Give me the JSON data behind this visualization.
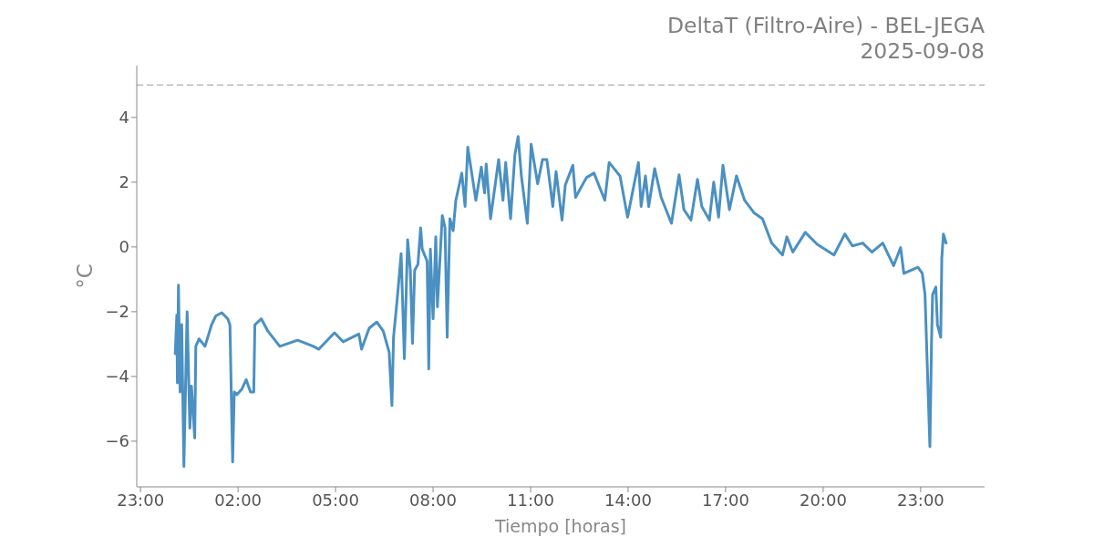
{
  "chart_data": {
    "type": "line",
    "title": "DeltaT (Filtro-Aire) - BEL-JEGA\n2025-09-08",
    "xlabel": "Tiempo [horas]",
    "ylabel": "°C",
    "color": "#4a90c2",
    "x": [
      "2025-09-08T00:04",
      "2025-09-08T00:07",
      "2025-09-08T00:08",
      "2025-09-08T00:10",
      "2025-09-08T00:13",
      "2025-09-08T00:16",
      "2025-09-08T00:20",
      "2025-09-08T00:26",
      "2025-09-08T00:31",
      "2025-09-08T00:34",
      "2025-09-08T00:40",
      "2025-09-08T00:42",
      "2025-09-08T00:48",
      "2025-09-08T00:59",
      "2025-09-08T01:11",
      "2025-09-08T01:19",
      "2025-09-08T01:30",
      "2025-09-08T01:41",
      "2025-09-08T01:45",
      "2025-09-08T01:50",
      "2025-09-08T01:53",
      "2025-09-08T01:58",
      "2025-09-08T02:07",
      "2025-09-08T02:15",
      "2025-09-08T02:23",
      "2025-09-08T02:29",
      "2025-09-08T02:31",
      "2025-09-08T02:43",
      "2025-09-08T02:55",
      "2025-09-08T03:17",
      "2025-09-08T03:50",
      "2025-09-08T04:19",
      "2025-09-08T04:29",
      "2025-09-08T04:58",
      "2025-09-08T05:14",
      "2025-09-08T05:43",
      "2025-09-08T05:48",
      "2025-09-08T06:02",
      "2025-09-08T06:16",
      "2025-09-08T06:28",
      "2025-09-08T06:39",
      "2025-09-08T06:44",
      "2025-09-08T06:47",
      "2025-09-08T06:53",
      "2025-09-08T06:56",
      "2025-09-08T07:01",
      "2025-09-08T07:07",
      "2025-09-08T07:13",
      "2025-09-08T07:18",
      "2025-09-08T07:22",
      "2025-09-08T07:26",
      "2025-09-08T07:32",
      "2025-09-08T07:37",
      "2025-09-08T07:40",
      "2025-09-08T07:49",
      "2025-09-08T07:52",
      "2025-09-08T07:55",
      "2025-09-08T08:00",
      "2025-09-08T08:05",
      "2025-09-08T08:08",
      "2025-09-08T08:17",
      "2025-09-08T08:22",
      "2025-09-08T08:26",
      "2025-09-08T08:31",
      "2025-09-08T08:37",
      "2025-09-08T08:42",
      "2025-09-08T08:53",
      "2025-09-08T08:59",
      "2025-09-08T09:04",
      "2025-09-08T09:19",
      "2025-09-08T09:29",
      "2025-09-08T09:35",
      "2025-09-08T09:38",
      "2025-09-08T09:46",
      "2025-09-08T10:01",
      "2025-09-08T10:09",
      "2025-09-08T10:14",
      "2025-09-08T10:23",
      "2025-09-08T10:31",
      "2025-09-08T10:37",
      "2025-09-08T10:43",
      "2025-09-08T10:54",
      "2025-09-08T11:01",
      "2025-09-08T11:13",
      "2025-09-08T11:22",
      "2025-09-08T11:30",
      "2025-09-08T11:41",
      "2025-09-08T11:47",
      "2025-09-08T11:58",
      "2025-09-08T12:04",
      "2025-09-08T12:18",
      "2025-09-08T12:23",
      "2025-09-08T12:43",
      "2025-09-08T12:57",
      "2025-09-08T13:17",
      "2025-09-08T13:25",
      "2025-09-08T13:45",
      "2025-09-08T13:59",
      "2025-09-08T14:19",
      "2025-09-08T14:24",
      "2025-09-08T14:32",
      "2025-09-08T14:38",
      "2025-09-08T14:49",
      "2025-09-08T15:01",
      "2025-09-08T15:20",
      "2025-09-08T15:34",
      "2025-09-08T15:43",
      "2025-09-08T15:56",
      "2025-09-08T16:08",
      "2025-09-08T16:16",
      "2025-09-08T16:30",
      "2025-09-08T16:38",
      "2025-09-08T16:47",
      "2025-09-08T16:55",
      "2025-09-08T17:07",
      "2025-09-08T17:20",
      "2025-09-08T17:35",
      "2025-09-08T17:52",
      "2025-09-08T18:08",
      "2025-09-08T18:25",
      "2025-09-08T18:45",
      "2025-09-08T18:53",
      "2025-09-08T19:04",
      "2025-09-08T19:27",
      "2025-09-08T19:49",
      "2025-09-08T20:20",
      "2025-09-08T20:40",
      "2025-09-08T20:54",
      "2025-09-08T21:13",
      "2025-09-08T21:30",
      "2025-09-08T21:50",
      "2025-09-08T22:10",
      "2025-09-08T22:23",
      "2025-09-08T22:29",
      "2025-09-08T22:55",
      "2025-09-08T23:03",
      "2025-09-08T23:08",
      "2025-09-08T23:17",
      "2025-09-08T23:20",
      "2025-09-08T23:22",
      "2025-09-08T23:28",
      "2025-09-08T23:31",
      "2025-09-08T23:37",
      "2025-09-08T23:39",
      "2025-09-08T23:42",
      "2025-09-08T23:47"
    ],
    "values": [
      -3.3,
      -2.1,
      -4.2,
      -1.18,
      -4.48,
      -2.4,
      -6.78,
      -2.0,
      -5.6,
      -4.3,
      -5.9,
      -3.07,
      -2.84,
      -3.07,
      -2.41,
      -2.13,
      -2.03,
      -2.22,
      -2.41,
      -6.64,
      -4.48,
      -4.56,
      -4.39,
      -4.1,
      -4.48,
      -4.48,
      -2.41,
      -2.22,
      -2.6,
      -3.07,
      -2.88,
      -3.07,
      -3.16,
      -2.65,
      -2.93,
      -2.69,
      -3.16,
      -2.51,
      -2.32,
      -2.6,
      -3.26,
      -4.9,
      -2.79,
      -1.75,
      -1.19,
      -0.21,
      -3.45,
      0.22,
      -0.72,
      -2.98,
      -0.72,
      -0.54,
      0.59,
      -0.07,
      -0.44,
      -3.77,
      -0.07,
      -2.22,
      0.31,
      -1.85,
      0.97,
      0.59,
      -2.79,
      0.87,
      0.5,
      1.44,
      2.28,
      1.25,
      3.08,
      1.44,
      2.47,
      1.67,
      2.56,
      0.87,
      2.7,
      1.44,
      2.61,
      0.87,
      2.85,
      3.41,
      2.19,
      0.73,
      3.17,
      1.95,
      2.7,
      2.7,
      1.25,
      2.33,
      0.83,
      1.91,
      2.52,
      1.53,
      2.14,
      2.28,
      1.44,
      2.61,
      2.19,
      0.92,
      2.61,
      1.25,
      2.19,
      1.25,
      2.42,
      1.53,
      0.73,
      2.23,
      1.15,
      0.83,
      2.09,
      1.25,
      0.83,
      2.0,
      0.92,
      2.52,
      1.15,
      2.19,
      1.44,
      1.06,
      0.87,
      0.12,
      -0.25,
      0.31,
      -0.16,
      0.45,
      0.08,
      -0.25,
      0.4,
      0.03,
      0.12,
      -0.16,
      0.12,
      -0.58,
      -0.02,
      -0.82,
      -0.63,
      -0.82,
      -1.47,
      -6.17,
      -2.98,
      -1.47,
      -1.24,
      -2.41,
      -2.79,
      -0.35,
      0.4,
      0.12
    ],
    "xlim": [
      "2025-09-07T22:53",
      "2025-09-09T00:58"
    ],
    "ylim": [
      -7.41,
      5.6
    ],
    "xticks": [
      {
        "value": "2025-09-07T23:00",
        "label": "23:00"
      },
      {
        "value": "2025-09-08T02:00",
        "label": "02:00"
      },
      {
        "value": "2025-09-08T05:00",
        "label": "05:00"
      },
      {
        "value": "2025-09-08T08:00",
        "label": "08:00"
      },
      {
        "value": "2025-09-08T11:00",
        "label": "11:00"
      },
      {
        "value": "2025-09-08T14:00",
        "label": "14:00"
      },
      {
        "value": "2025-09-08T17:00",
        "label": "17:00"
      },
      {
        "value": "2025-09-08T20:00",
        "label": "20:00"
      },
      {
        "value": "2025-09-08T23:00",
        "label": "23:00"
      }
    ],
    "yticks": [
      -6,
      -4,
      -2,
      0,
      2,
      4
    ],
    "ref_lines": [
      {
        "axis": "y",
        "value": 5,
        "color": "#bbbbbb",
        "line_style": "dashed"
      }
    ]
  }
}
